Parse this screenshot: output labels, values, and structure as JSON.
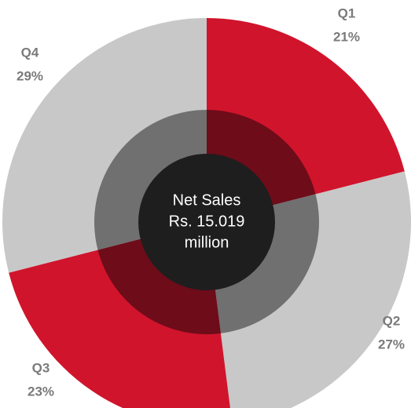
{
  "chart_data": {
    "type": "pie",
    "categories": [
      "Q1",
      "Q2",
      "Q3",
      "Q4"
    ],
    "values": [
      21,
      27,
      23,
      29
    ],
    "value_labels": [
      "21%",
      "27%",
      "23%",
      "29%"
    ],
    "colors": [
      "#d0142c",
      "#c8c8c8",
      "#d0142c",
      "#c8c8c8"
    ],
    "inner_colors": [
      "#6e0c19",
      "#707070",
      "#6e0c19",
      "#707070"
    ],
    "center_text": [
      "Net Sales",
      "Rs. 15.019",
      "million"
    ]
  }
}
